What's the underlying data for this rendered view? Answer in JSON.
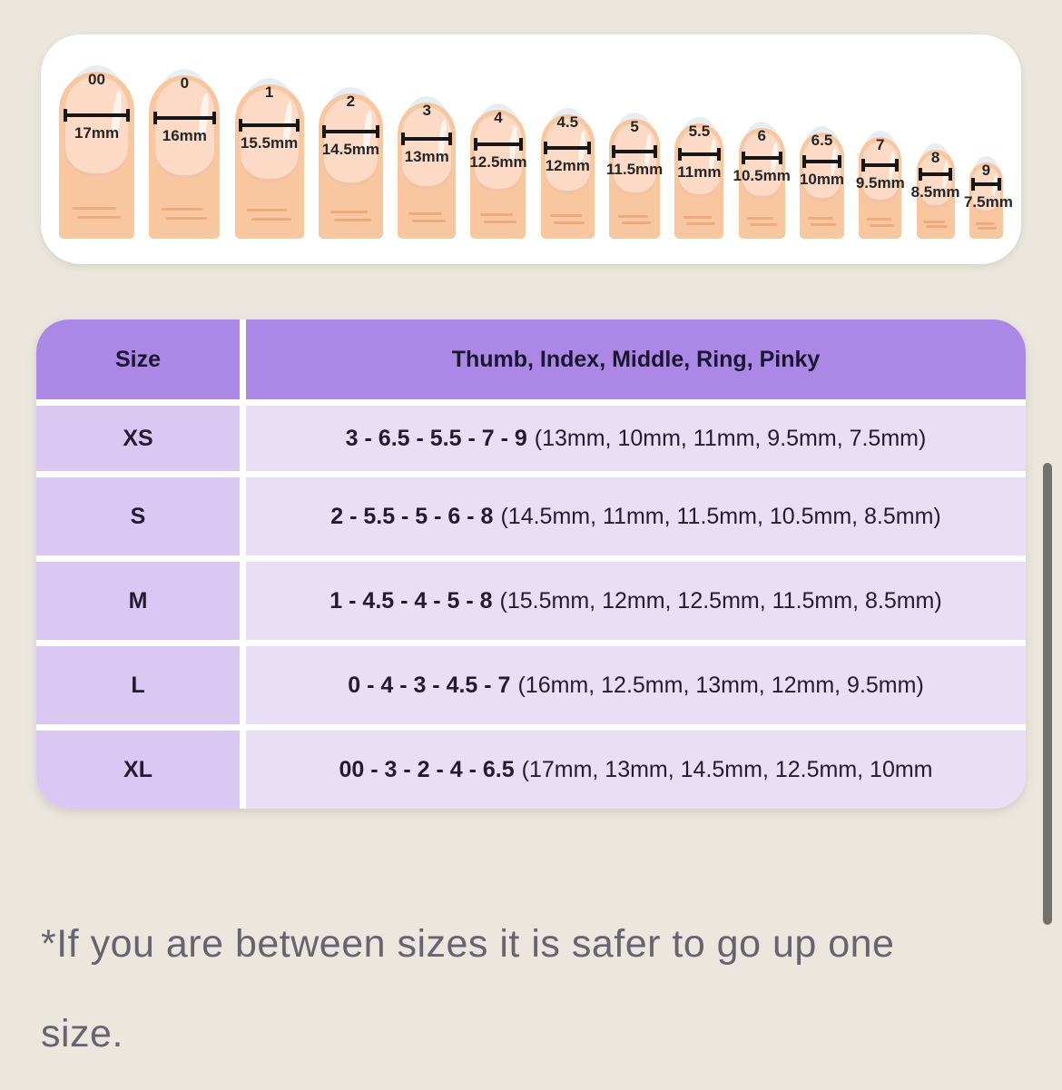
{
  "size_guide_card": {
    "fingers": [
      {
        "size": "00",
        "width_label": "17mm",
        "mm": 17
      },
      {
        "size": "0",
        "width_label": "16mm",
        "mm": 16
      },
      {
        "size": "1",
        "width_label": "15.5mm",
        "mm": 15.5
      },
      {
        "size": "2",
        "width_label": "14.5mm",
        "mm": 14.5
      },
      {
        "size": "3",
        "width_label": "13mm",
        "mm": 13
      },
      {
        "size": "4",
        "width_label": "12.5mm",
        "mm": 12.5
      },
      {
        "size": "4.5",
        "width_label": "12mm",
        "mm": 12
      },
      {
        "size": "5",
        "width_label": "11.5mm",
        "mm": 11.5
      },
      {
        "size": "5.5",
        "width_label": "11mm",
        "mm": 11
      },
      {
        "size": "6",
        "width_label": "10.5mm",
        "mm": 10.5
      },
      {
        "size": "6.5",
        "width_label": "10mm",
        "mm": 10
      },
      {
        "size": "7",
        "width_label": "9.5mm",
        "mm": 9.5
      },
      {
        "size": "8",
        "width_label": "8.5mm",
        "mm": 8.5
      },
      {
        "size": "9",
        "width_label": "7.5mm",
        "mm": 7.5
      }
    ]
  },
  "size_table": {
    "columns": [
      "Size",
      "Thumb, Index, Middle, Ring, Pinky"
    ],
    "rows": [
      {
        "size": "XS",
        "sizes_bold": "3 - 6.5 - 5.5 - 7 - 9",
        "mms": "(13mm, 10mm, 11mm, 9.5mm, 7.5mm)"
      },
      {
        "size": "S",
        "sizes_bold": "2 - 5.5 - 5 - 6 - 8",
        "mms": "(14.5mm, 11mm, 11.5mm, 10.5mm, 8.5mm)"
      },
      {
        "size": "M",
        "sizes_bold": "1 - 4.5 - 4 - 5 - 8",
        "mms": "(15.5mm, 12mm, 12.5mm, 11.5mm, 8.5mm)"
      },
      {
        "size": "L",
        "sizes_bold": "0 - 4 - 3 - 4.5 - 7",
        "mms": "(16mm, 12.5mm, 13mm, 12mm, 9.5mm)"
      },
      {
        "size": "XL",
        "sizes_bold": "00 - 3 - 2 - 4 - 6.5",
        "mms": "(17mm, 13mm, 14.5mm, 12.5mm, 10mm"
      }
    ]
  },
  "footnote": {
    "lines": [
      "*If you are between sizes it is safer to go up one",
      "size."
    ]
  },
  "colors": {
    "page_background": "#ebe7df",
    "card_background": "#ffffff",
    "table_header": "#ab88e6",
    "table_size_column": "#d9c8f2",
    "table_values_column": "#e8dff7",
    "finger_skin": "#f8c7a0",
    "finger_nail": "#fcdac6",
    "measure_bar": "#171717",
    "footnote_text": "#67646e",
    "scrollbar": "#72726c"
  }
}
